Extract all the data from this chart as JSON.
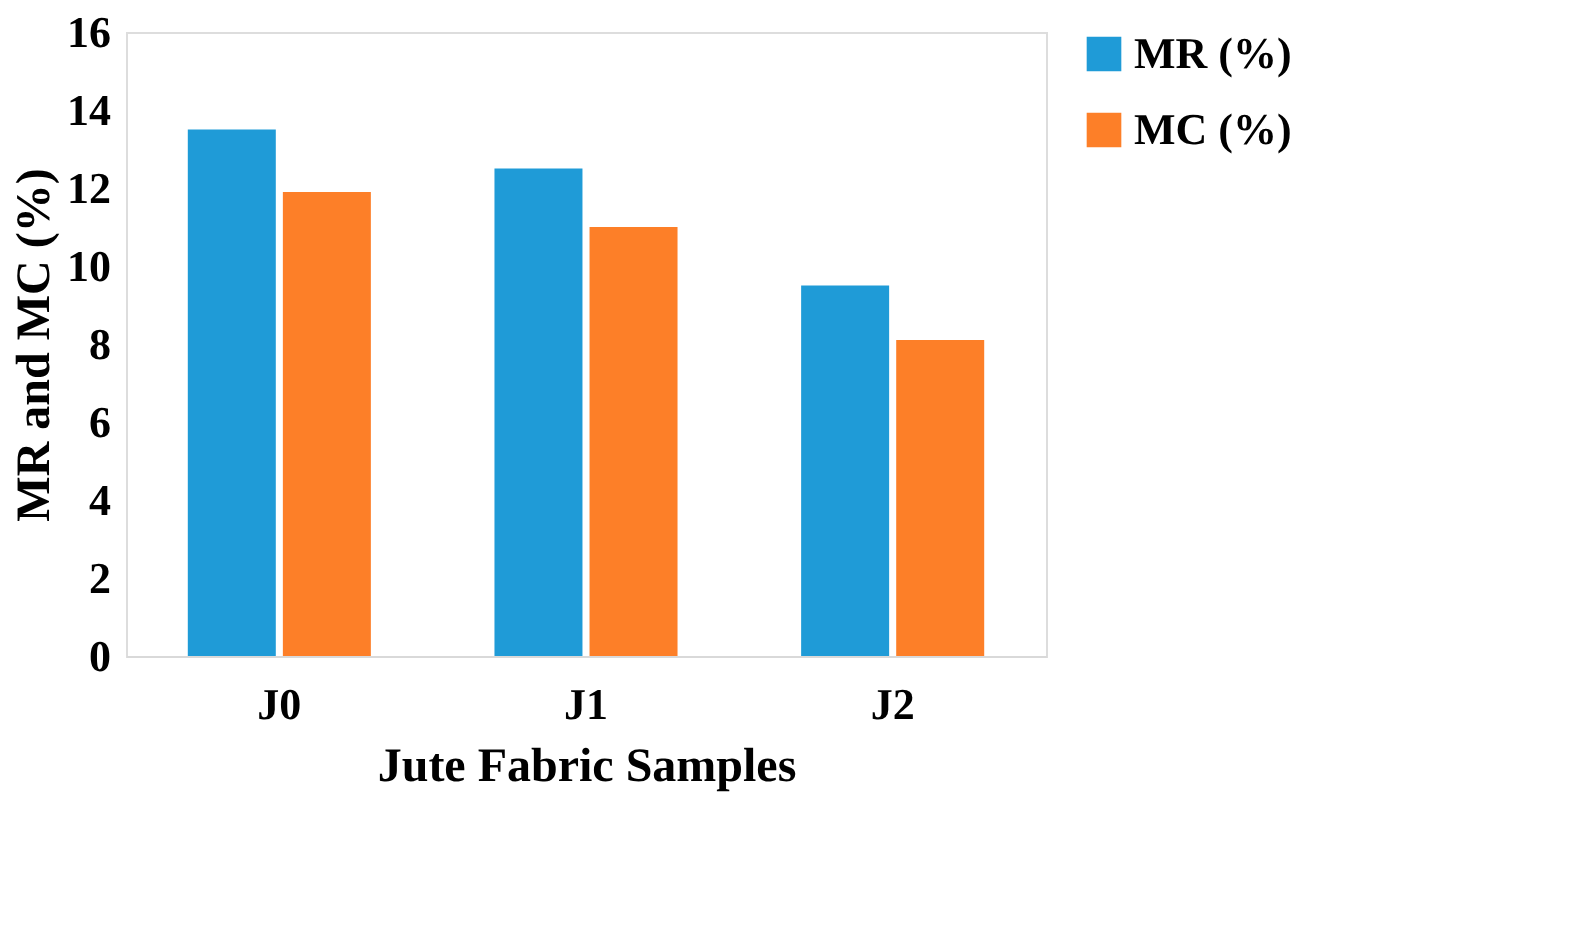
{
  "chart_data": {
    "type": "bar",
    "xlabel": "Jute Fabric Samples",
    "ylabel": "MR and MC (%)",
    "categories": [
      "J0",
      "J1",
      "J2"
    ],
    "series": [
      {
        "name": "MR (%)",
        "color": "#1f9bd7",
        "values": [
          13.5,
          12.5,
          9.5
        ]
      },
      {
        "name": "MC (%)",
        "color": "#fd7f28",
        "values": [
          11.9,
          11.0,
          8.1
        ]
      }
    ],
    "ylim": [
      0,
      16
    ],
    "yticks": [
      0,
      2,
      4,
      6,
      8,
      10,
      12,
      14,
      16
    ],
    "grid": false,
    "legend": "right"
  }
}
